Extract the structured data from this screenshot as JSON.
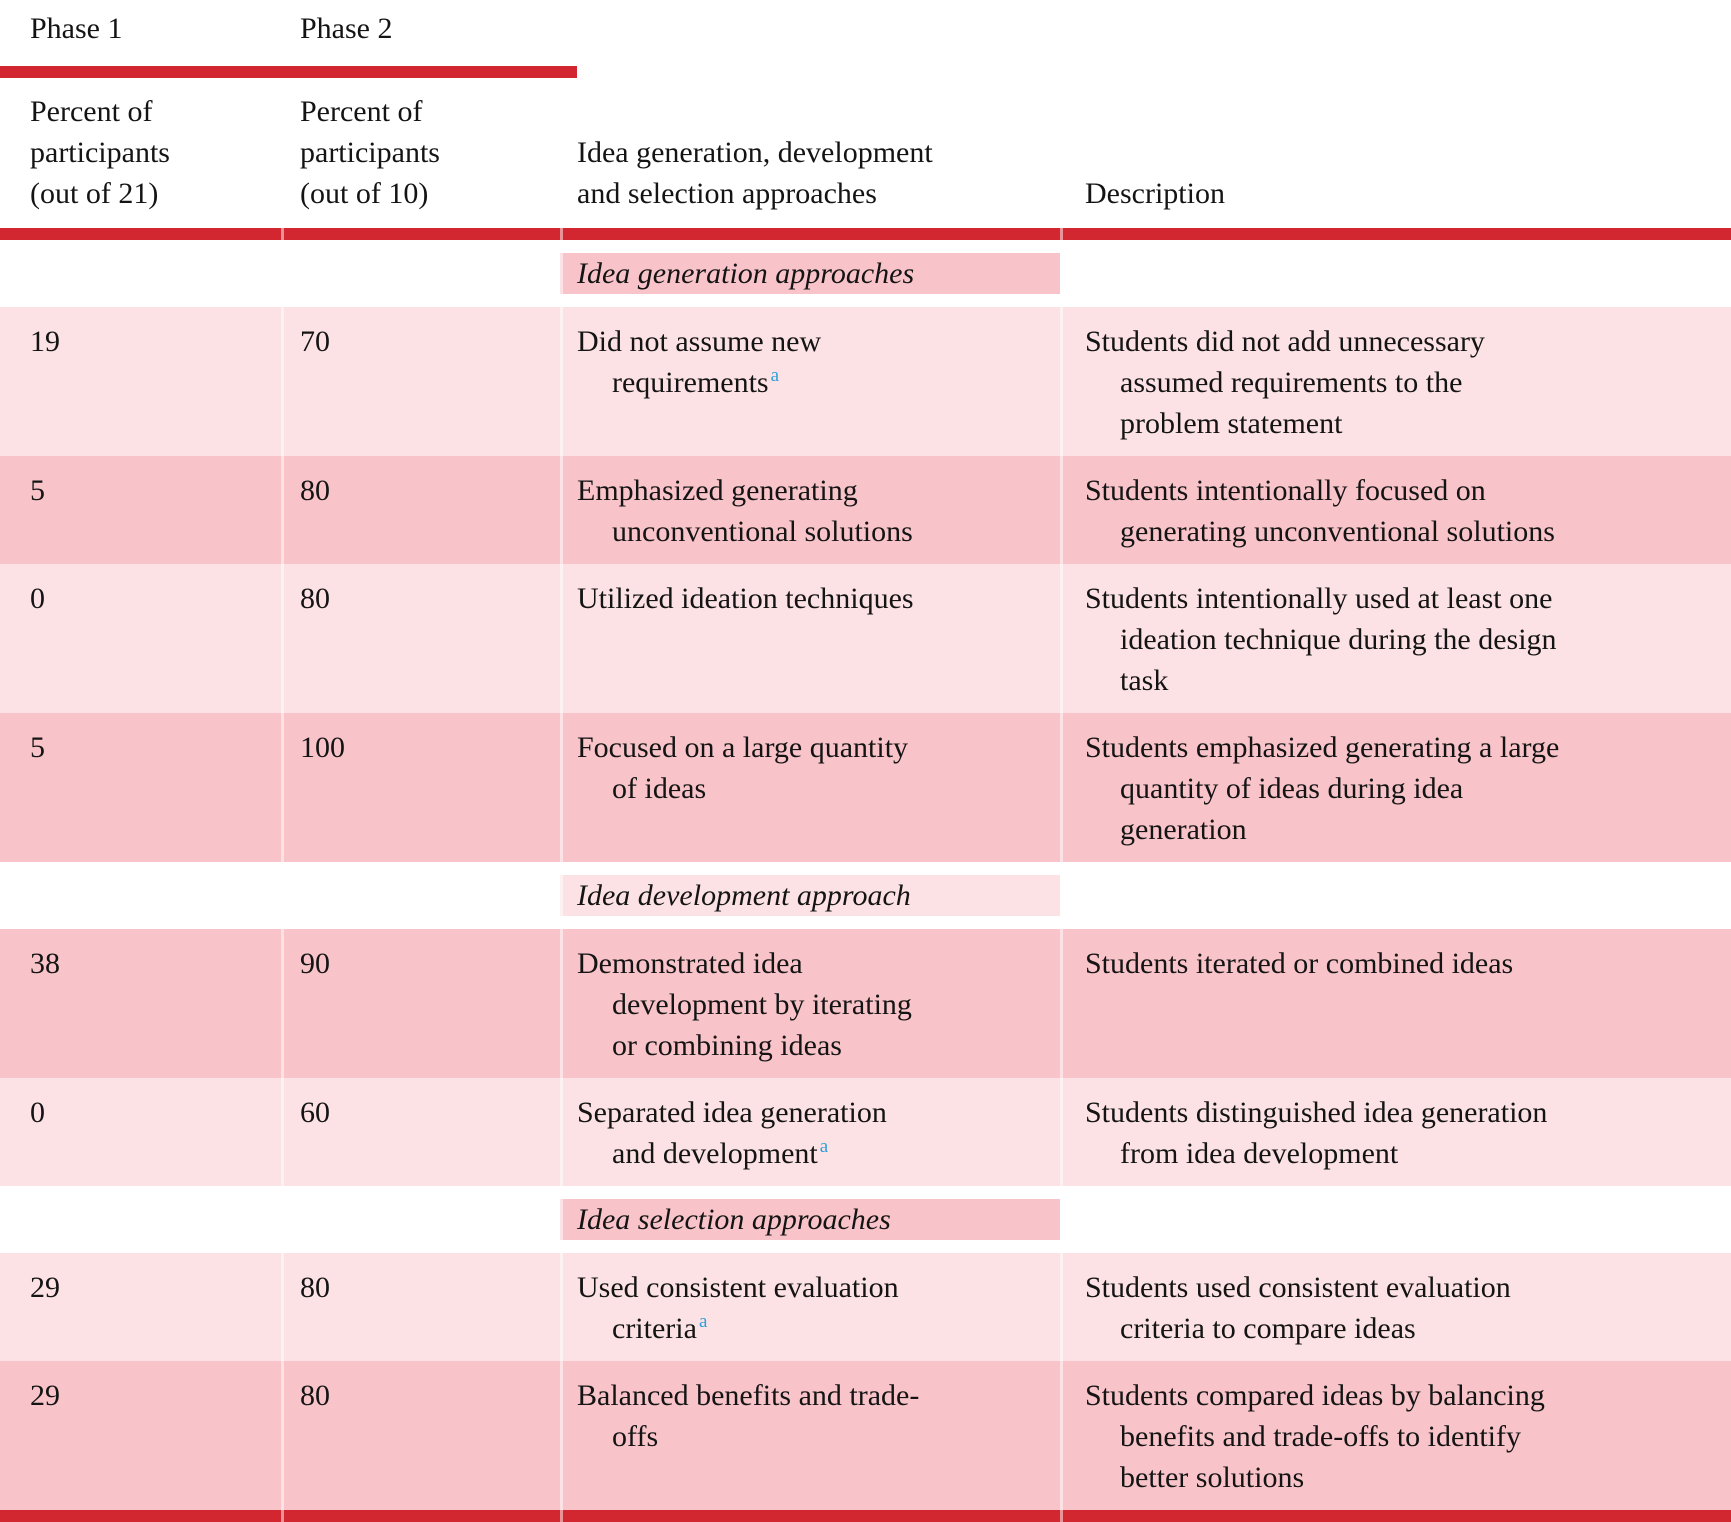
{
  "colors": {
    "accent_red": "#d22630",
    "row_dark_pink": "#f8c4c9",
    "row_light_pink": "#fce2e5",
    "footnote_blue": "#2e9fd9",
    "text": "#141414"
  },
  "table": {
    "phase_headers": [
      "Phase 1",
      "Phase 2"
    ],
    "column_headers": [
      "Percent of\nparticipants\n(out of 21)",
      "Percent of\nparticipants\n(out of 10)",
      "Idea generation, development\nand selection approaches",
      "Description"
    ],
    "rows": [
      {
        "type": "section",
        "label": "Idea generation approaches"
      },
      {
        "type": "data",
        "phase1": "19",
        "phase2": "70",
        "approach": "Did not assume new\nrequirements",
        "footnote": "a",
        "description": "Students did not add unnecessary\nassumed requirements to the\nproblem statement"
      },
      {
        "type": "data",
        "phase1": "5",
        "phase2": "80",
        "approach": "Emphasized generating\nunconventional solutions",
        "footnote": "",
        "description": "Students intentionally focused on\ngenerating unconventional solutions"
      },
      {
        "type": "data",
        "phase1": "0",
        "phase2": "80",
        "approach": "Utilized ideation techniques",
        "footnote": "",
        "description": "Students intentionally used at least one\nideation technique during the design\ntask"
      },
      {
        "type": "data",
        "phase1": "5",
        "phase2": "100",
        "approach": "Focused on a large quantity\nof ideas",
        "footnote": "",
        "description": "Students emphasized generating a large\nquantity of ideas during idea\ngeneration"
      },
      {
        "type": "section",
        "label": "Idea development approach"
      },
      {
        "type": "data",
        "phase1": "38",
        "phase2": "90",
        "approach": "Demonstrated idea\ndevelopment by iterating\nor combining ideas",
        "footnote": "",
        "description": "Students iterated or combined ideas"
      },
      {
        "type": "data",
        "phase1": "0",
        "phase2": "60",
        "approach": "Separated idea generation\nand development",
        "footnote": "a",
        "description": "Students distinguished idea generation\nfrom idea development"
      },
      {
        "type": "section",
        "label": "Idea selection approaches"
      },
      {
        "type": "data",
        "phase1": "29",
        "phase2": "80",
        "approach": "Used consistent evaluation\ncriteria",
        "footnote": "a",
        "description": "Students used consistent evaluation\ncriteria to compare ideas"
      },
      {
        "type": "data",
        "phase1": "29",
        "phase2": "80",
        "approach": "Balanced benefits and trade-\noffs",
        "footnote": "",
        "description": "Students compared ideas by balancing\nbenefits and trade-offs to identify\nbetter solutions"
      }
    ]
  }
}
